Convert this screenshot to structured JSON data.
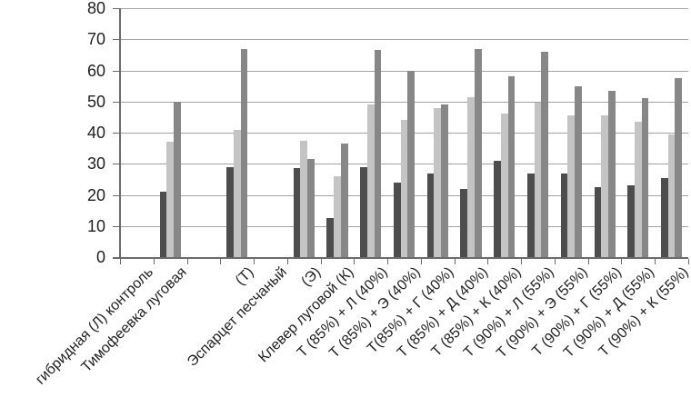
{
  "chart_data": {
    "type": "bar",
    "title": "",
    "xlabel": "",
    "ylabel": "",
    "ylim": [
      0,
      80
    ],
    "yticks": [
      0,
      10,
      20,
      30,
      40,
      50,
      60,
      70,
      80
    ],
    "grid": true,
    "legend": null,
    "background_color": "#ffffff",
    "gridline_color": "#a3a3a3",
    "axis_color": "#6b6b6b",
    "text_color": "#1f1f1f",
    "series_names": [
      "series-1-dark-gray",
      "series-2-light-gray",
      "series-3-medium-gray"
    ],
    "series_colors": [
      "#4d4d4d",
      "#c4c4c4",
      "#878787"
    ],
    "categories": [
      {
        "label": "гибридная (Л) контроль",
        "values": null
      },
      {
        "label": "Тимофеевка луговая",
        "values": [
          21,
          37,
          50
        ]
      },
      {
        "label": "",
        "values": null
      },
      {
        "label": "(Т)",
        "values": [
          29,
          41,
          67
        ]
      },
      {
        "label": "Эспарцет песчаный",
        "values": null
      },
      {
        "label": "(Э)",
        "values": [
          28.5,
          37.5,
          31.5
        ]
      },
      {
        "label": "Клевер луговой (К)",
        "values": [
          12.5,
          26,
          36.5
        ]
      },
      {
        "label": "Т (85%) + Л (40%)",
        "values": [
          29,
          49,
          66.5
        ]
      },
      {
        "label": "Т (85%) + Э (40%)",
        "values": [
          24,
          44,
          60
        ]
      },
      {
        "label": "Т(85%) + Г (40%)",
        "values": [
          27,
          48,
          49
        ]
      },
      {
        "label": "Т (85%) + Д (40%)",
        "values": [
          22,
          51.5,
          67
        ]
      },
      {
        "label": "Т (85%) + К (40%)",
        "values": [
          31,
          46,
          58
        ]
      },
      {
        "label": "Т (90%) + Л (55%)",
        "values": [
          27,
          49.5,
          66
        ]
      },
      {
        "label": "Т (90%) + Э (55%)",
        "values": [
          27,
          45.5,
          55
        ]
      },
      {
        "label": "Т (90%) + Г (55%)",
        "values": [
          22.5,
          45.5,
          53.5
        ]
      },
      {
        "label": "Т (90%) + Д (55%)",
        "values": [
          23,
          43.5,
          51
        ]
      },
      {
        "label": "Т (90%) + К (55%)",
        "values": [
          25.5,
          39.5,
          57.5
        ]
      }
    ]
  }
}
